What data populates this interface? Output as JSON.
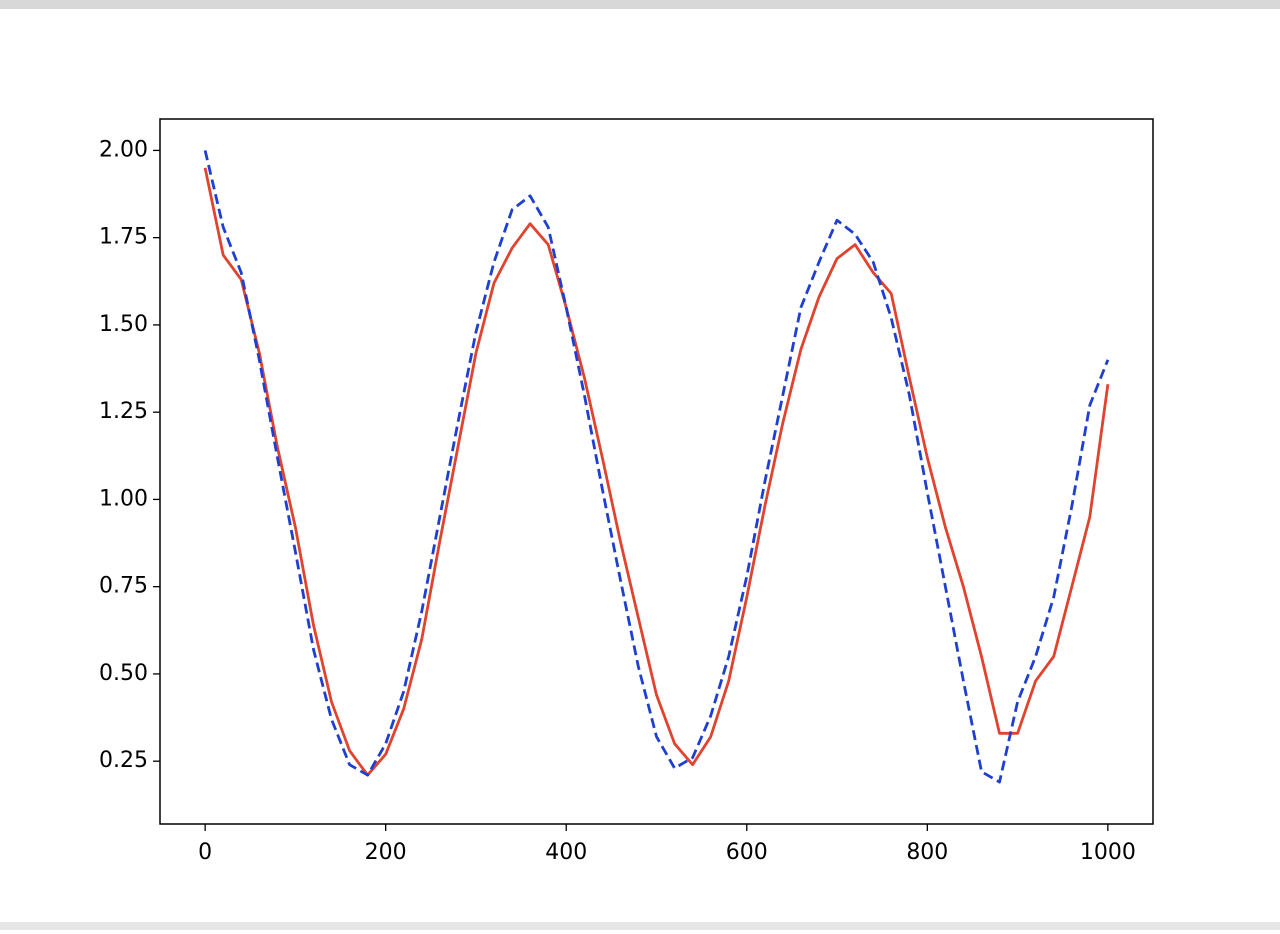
{
  "chart_data": {
    "type": "line",
    "x": [
      0,
      20,
      40,
      60,
      80,
      100,
      120,
      140,
      160,
      180,
      200,
      220,
      240,
      260,
      280,
      300,
      320,
      340,
      360,
      380,
      400,
      420,
      440,
      460,
      480,
      500,
      520,
      540,
      560,
      580,
      600,
      620,
      640,
      660,
      680,
      700,
      720,
      740,
      760,
      780,
      800,
      820,
      840,
      860,
      880,
      900,
      920,
      940,
      960,
      980,
      1000
    ],
    "series": [
      {
        "color": "#e0432e",
        "style": "solid",
        "values": [
          1.95,
          1.7,
          1.63,
          1.42,
          1.15,
          0.92,
          0.64,
          0.42,
          0.28,
          0.21,
          0.27,
          0.4,
          0.6,
          0.88,
          1.15,
          1.42,
          1.62,
          1.72,
          1.79,
          1.73,
          1.55,
          1.35,
          1.12,
          0.88,
          0.66,
          0.44,
          0.3,
          0.24,
          0.32,
          0.48,
          0.72,
          0.98,
          1.22,
          1.43,
          1.58,
          1.69,
          1.73,
          1.65,
          1.59,
          1.35,
          1.12,
          0.92,
          0.75,
          0.55,
          0.33,
          0.33,
          0.48,
          0.55,
          0.75,
          0.95,
          1.33
        ]
      },
      {
        "color": "#1f3fd1",
        "style": "dashed",
        "values": [
          2.0,
          1.78,
          1.65,
          1.4,
          1.12,
          0.85,
          0.57,
          0.37,
          0.24,
          0.21,
          0.3,
          0.45,
          0.68,
          0.95,
          1.22,
          1.48,
          1.68,
          1.83,
          1.87,
          1.78,
          1.55,
          1.3,
          1.03,
          0.77,
          0.52,
          0.32,
          0.23,
          0.26,
          0.38,
          0.55,
          0.78,
          1.05,
          1.3,
          1.55,
          1.68,
          1.8,
          1.76,
          1.68,
          1.52,
          1.3,
          1.02,
          0.75,
          0.48,
          0.22,
          0.19,
          0.42,
          0.55,
          0.72,
          0.98,
          1.27,
          1.4
        ]
      }
    ],
    "xlim": [
      -50,
      1050
    ],
    "ylim": [
      0.07,
      2.09
    ],
    "xticks": [
      0,
      200,
      400,
      600,
      800,
      1000
    ],
    "yticks": [
      {
        "value": 0.25,
        "label": "0.25"
      },
      {
        "value": 0.5,
        "label": "0.50"
      },
      {
        "value": 0.75,
        "label": "0.75"
      },
      {
        "value": 1,
        "label": "1.00"
      },
      {
        "value": 1.25,
        "label": "1.25"
      },
      {
        "value": 1.5,
        "label": "1.50"
      },
      {
        "value": 1.75,
        "label": "1.75"
      },
      {
        "value": 2,
        "label": "2.00"
      }
    ]
  }
}
